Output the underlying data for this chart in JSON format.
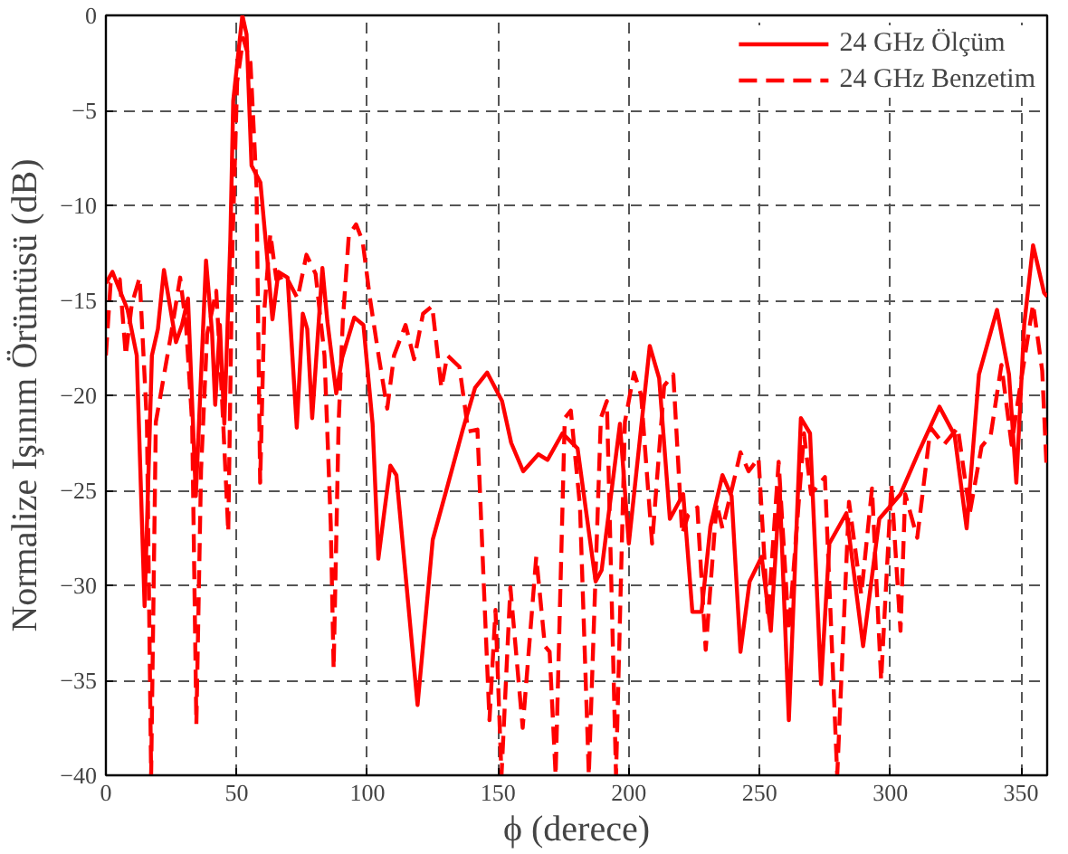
{
  "chart_data": {
    "type": "line",
    "xlabel": "ϕ (derece)",
    "ylabel": "Normalize Işınım Örüntüsü (dB)",
    "xlim": [
      0,
      360
    ],
    "ylim": [
      -40,
      0
    ],
    "xticks": [
      0,
      50,
      100,
      150,
      200,
      250,
      300,
      350
    ],
    "yticks": [
      -40,
      -35,
      -30,
      -25,
      -20,
      -15,
      -10,
      -5,
      0
    ],
    "grid": true,
    "legend": "top right",
    "series": [
      {
        "name": "24 GHz Ölçüm",
        "color": "#ff0000",
        "line_style": "solid",
        "x": [
          0,
          2.5,
          8.3,
          11.8,
          14.8,
          17.6,
          19.9,
          22.2,
          26.8,
          29.1,
          31.4,
          34.4,
          38.3,
          40.6,
          41.8,
          43.6,
          45.3,
          47.6,
          48.7,
          52.2,
          53.8,
          55.7,
          59.1,
          61.4,
          63.7,
          66,
          69.5,
          73,
          75.3,
          77,
          78.9,
          82.8,
          84.7,
          88.1,
          90.4,
          95,
          98.5,
          102,
          104.2,
          106.6,
          108.8,
          111.1,
          119.2,
          125,
          130.8,
          136.5,
          141.2,
          145.8,
          151.5,
          155,
          159.6,
          165.4,
          168.9,
          174.6,
          180.4,
          187.3,
          189.6,
          196.6,
          200,
          208,
          211.6,
          215.7,
          220.8,
          224.3,
          227.8,
          231.2,
          235.8,
          239.3,
          242.7,
          246.2,
          250.8,
          254.3,
          257.7,
          261.2,
          265.8,
          269.3,
          273.5,
          276.7,
          283.2,
          289.6,
          295.8,
          303.9,
          310.8,
          318.8,
          324.6,
          329.2,
          333.9,
          340.8,
          345.4,
          348.2,
          351.2,
          354.6,
          358.8,
          360
        ],
        "values": [
          -14.1,
          -13.5,
          -15.5,
          -17.9,
          -31.1,
          -17.9,
          -16.5,
          -13.4,
          -17.2,
          -16.3,
          -14.9,
          -25.3,
          -12.9,
          -16.7,
          -20.5,
          -16.3,
          -21.5,
          -11.8,
          -4.5,
          0,
          -1,
          -7.9,
          -8.8,
          -12.3,
          -16,
          -13.5,
          -13.8,
          -21.7,
          -15.7,
          -16.5,
          -21.2,
          -13.3,
          -16.1,
          -19.9,
          -18,
          -15.9,
          -16.3,
          -21.5,
          -28.6,
          -26,
          -23.7,
          -24.2,
          -36.3,
          -27.6,
          -24.7,
          -21.8,
          -19.6,
          -18.8,
          -20.3,
          -22.5,
          -24,
          -23.1,
          -23.4,
          -22,
          -22.8,
          -29.8,
          -29.2,
          -21.5,
          -27.8,
          -17.4,
          -19.1,
          -26.5,
          -25.2,
          -31.4,
          -31.4,
          -26.9,
          -24.2,
          -25.3,
          -33.5,
          -29.8,
          -28.5,
          -32.4,
          -24.9,
          -37.1,
          -21.2,
          -22,
          -35.2,
          -27.8,
          -26.2,
          -33.2,
          -26.5,
          -25.2,
          -23,
          -20.6,
          -22.1,
          -27,
          -18.9,
          -15.5,
          -18.9,
          -24.6,
          -16.3,
          -12.1,
          -14.6,
          -14.8
        ]
      },
      {
        "name": "24 GHz Benzetim",
        "color": "#ff0000",
        "line_style": "dashed",
        "x": [
          0,
          1.8,
          5.3,
          7.6,
          9.9,
          12.9,
          15.7,
          17.3,
          19.1,
          21.4,
          24.9,
          28.4,
          30.7,
          33,
          34.6,
          36.4,
          38.7,
          42.2,
          44.4,
          46.8,
          48.4,
          50.2,
          52.5,
          55.3,
          57.6,
          59,
          60.6,
          62.9,
          65.2,
          68.7,
          73.3,
          76.7,
          80.2,
          83.6,
          86,
          87.1,
          89,
          90.6,
          92.9,
          95.7,
          98.2,
          101,
          104.4,
          107.6,
          110.2,
          114.6,
          117.9,
          121.3,
          124.8,
          128.3,
          130.6,
          135.2,
          138.6,
          142.1,
          144.9,
          146.7,
          149,
          151.3,
          154.7,
          159.4,
          164.6,
          167.9,
          169.7,
          172,
          175.5,
          177.8,
          181.3,
          184.7,
          189.3,
          191.6,
          195.1,
          198.5,
          202,
          204.7,
          208.9,
          213.5,
          217,
          220.4,
          222.7,
          226.2,
          229.4,
          233.6,
          235.8,
          239.3,
          242.7,
          245.8,
          249.6,
          253.2,
          257.3,
          261.2,
          267,
          269.7,
          275,
          279.7,
          284.2,
          288.9,
          293,
          296.5,
          300.4,
          303.9,
          305.7,
          310.3,
          315.4,
          320.5,
          325.8,
          330.4,
          334.9,
          338.4,
          342.5,
          346.4,
          348.7,
          354.6,
          358.1,
          359.7
        ],
        "values": [
          -17.9,
          -14.1,
          -13.9,
          -17.9,
          -15.2,
          -13.8,
          -21.5,
          -40,
          -21.4,
          -19.6,
          -16.8,
          -13.8,
          -16.4,
          -21.5,
          -37.3,
          -23.9,
          -16.8,
          -14.5,
          -20.1,
          -27.2,
          -12.2,
          -3.5,
          -1.2,
          -2.5,
          -9,
          -24.6,
          -15.5,
          -11.5,
          -13.9,
          -13.7,
          -14.9,
          -12.6,
          -13.6,
          -17.9,
          -26.8,
          -34.4,
          -21.5,
          -16.1,
          -11.6,
          -11,
          -11.9,
          -14.9,
          -18,
          -20.7,
          -17.9,
          -16.3,
          -18.1,
          -15.7,
          -15.3,
          -19.6,
          -17.9,
          -18.5,
          -21.9,
          -21.8,
          -31.2,
          -37.1,
          -31.3,
          -40,
          -30.1,
          -37.5,
          -28.5,
          -33.2,
          -33.5,
          -40,
          -21.2,
          -20.8,
          -25.8,
          -40,
          -21.2,
          -20.3,
          -40,
          -21.4,
          -18.8,
          -20,
          -27.8,
          -19.5,
          -18.9,
          -27.3,
          -26.3,
          -25.9,
          -33.4,
          -25.7,
          -27,
          -25,
          -23,
          -24,
          -23.3,
          -31.7,
          -23.5,
          -32.4,
          -22,
          -25.2,
          -24.3,
          -40,
          -25.6,
          -30.5,
          -24.9,
          -35,
          -24.7,
          -32.4,
          -25.2,
          -27.5,
          -21.7,
          -22.6,
          -21.7,
          -26.2,
          -22.7,
          -22.1,
          -18.4,
          -22.6,
          -20.4,
          -15.2,
          -18.7,
          -23.6
        ]
      }
    ]
  }
}
